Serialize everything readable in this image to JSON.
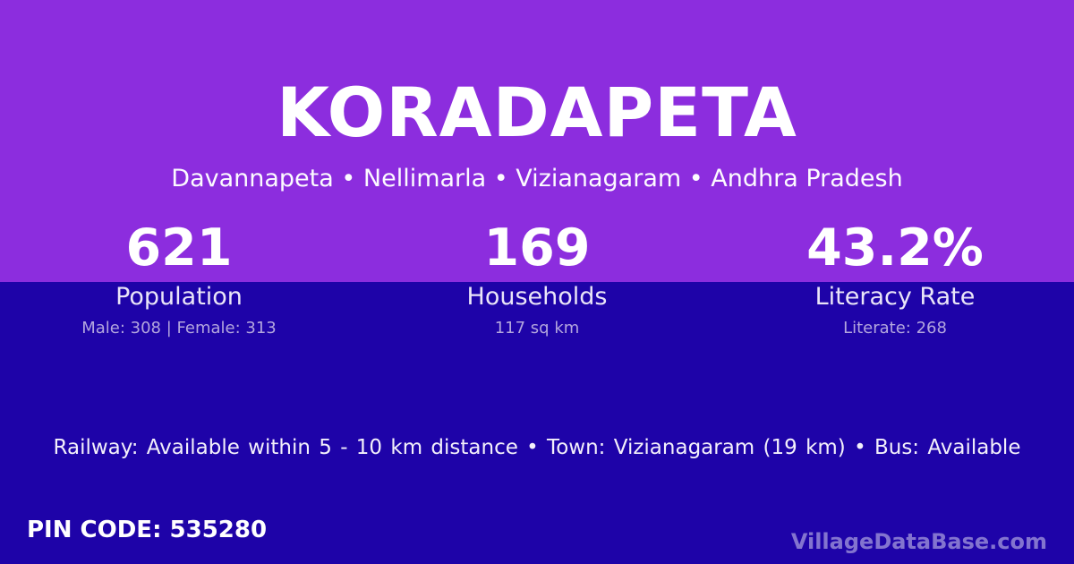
{
  "card": {
    "title": "KORADAPETA",
    "breadcrumb": "Davannapeta • Nellimarla • Vizianagaram • Andhra Pradesh",
    "stats": [
      {
        "value": "621",
        "label": "Population",
        "detail": "Male: 308 | Female: 313"
      },
      {
        "value": "169",
        "label": "Households",
        "detail": "117 sq km"
      },
      {
        "value": "43.2%",
        "label": "Literacy Rate",
        "detail": "Literate: 268"
      }
    ],
    "transport_info": "Railway: Available within 5 - 10 km distance • Town: Vizianagaram (19 km) • Bus: Available",
    "pin_code": "PIN CODE: 535280",
    "watermark": "VillageDataBase.com",
    "colors": {
      "top_background": "#8C2DDE",
      "bottom_background": "#1E03A8",
      "text_primary": "#FFFFFF",
      "text_muted": "#B3A6DE",
      "watermark_color": "rgba(255,255,255,0.45)"
    }
  }
}
